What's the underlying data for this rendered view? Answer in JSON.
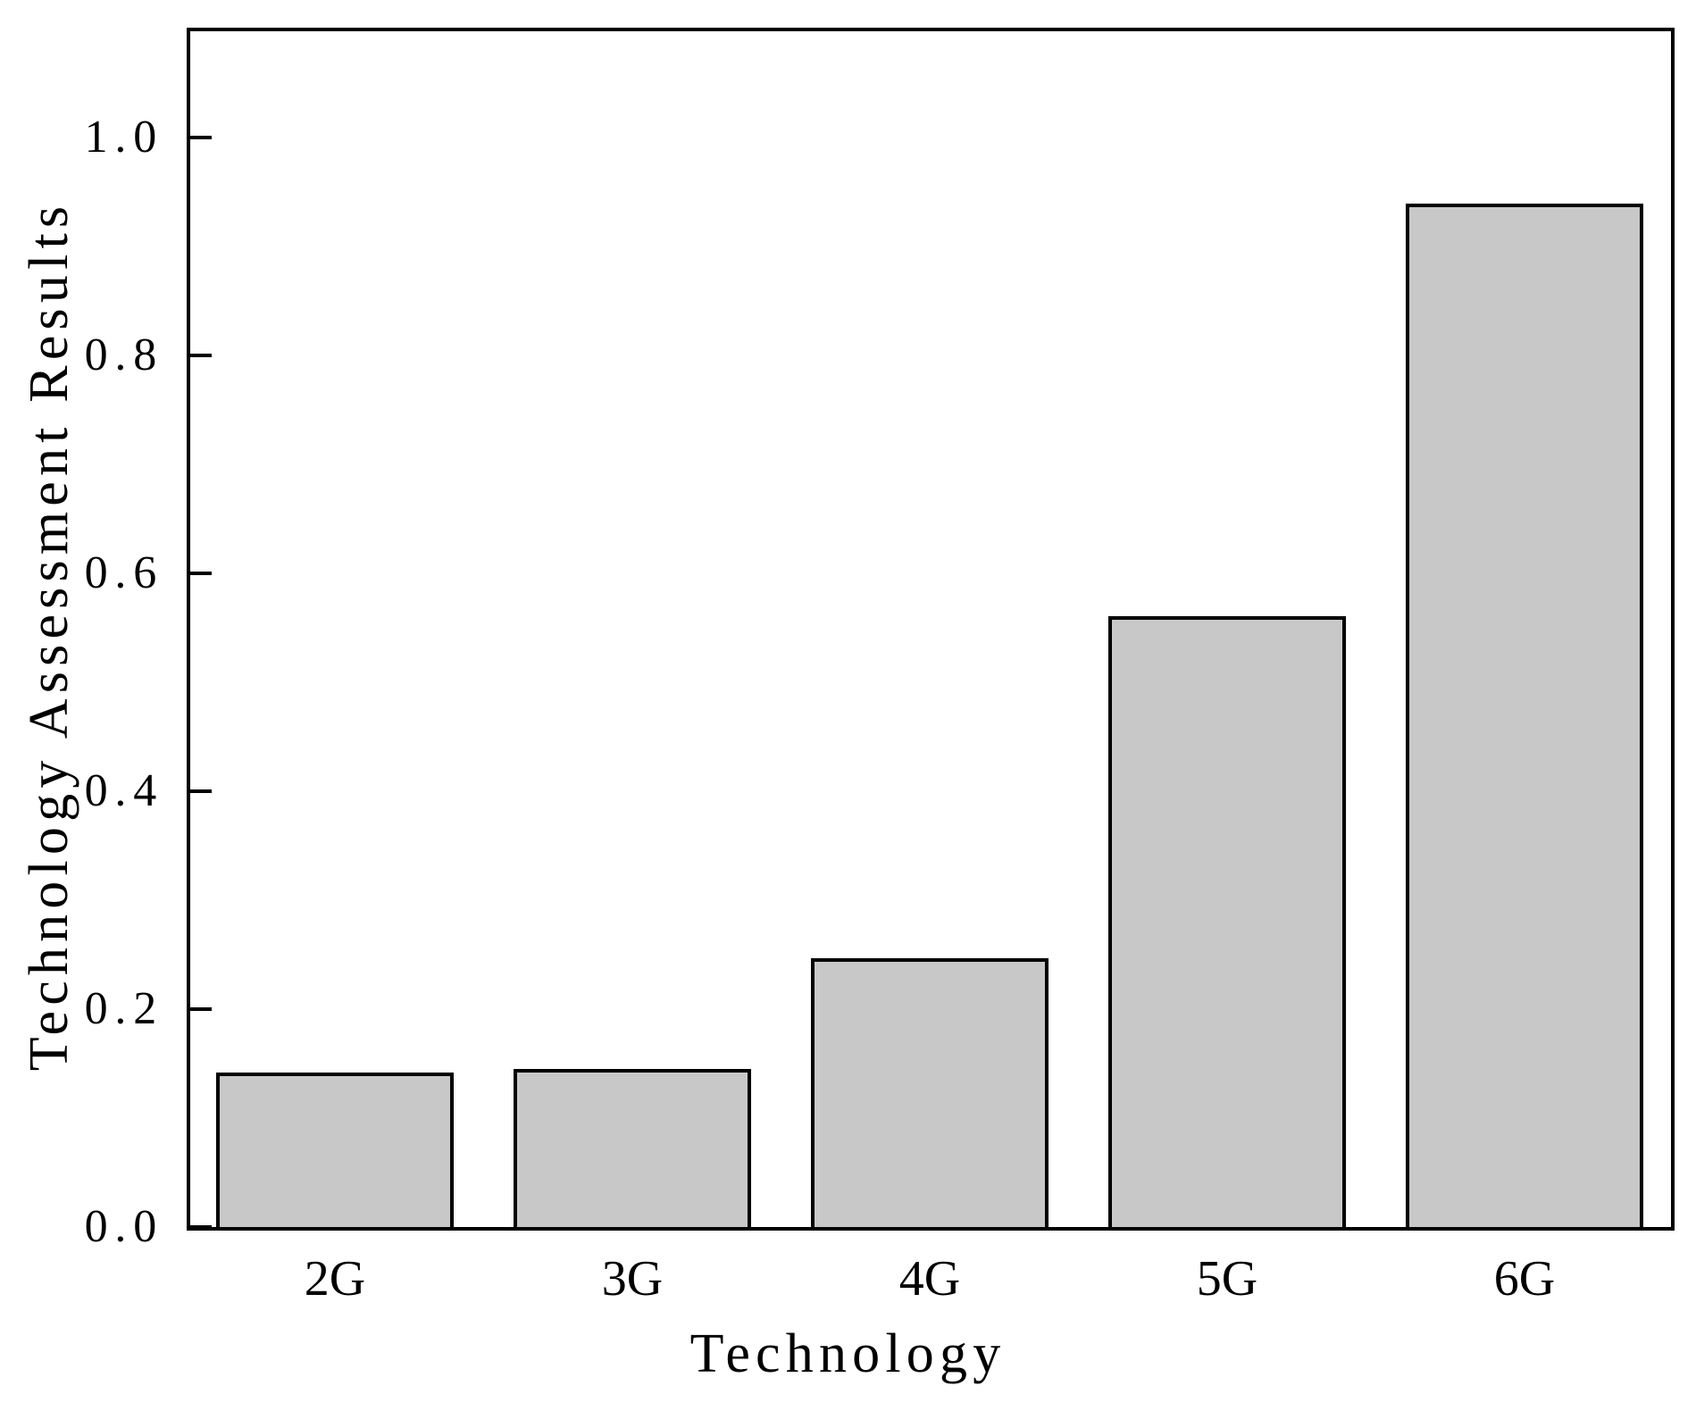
{
  "chart_data": {
    "type": "bar",
    "title": "",
    "xlabel": "Technology",
    "ylabel": "Technology Assessment Results",
    "categories": [
      "2G",
      "3G",
      "4G",
      "5G",
      "6G"
    ],
    "values": [
      0.142,
      0.145,
      0.247,
      0.561,
      0.939
    ],
    "yticks": [
      0.0,
      0.2,
      0.4,
      0.6,
      0.8,
      1.0
    ],
    "ytick_labels": [
      "0.0",
      "0.2",
      "0.4",
      "0.6",
      "0.8",
      "1.0"
    ],
    "ylim": [
      0,
      1.1
    ],
    "grid": false,
    "legend": false,
    "colors": {
      "bar_fill": "#c8c8c8",
      "bar_edge": "#000000",
      "axis": "#000000",
      "text": "#000000",
      "background": "#ffffff"
    }
  }
}
